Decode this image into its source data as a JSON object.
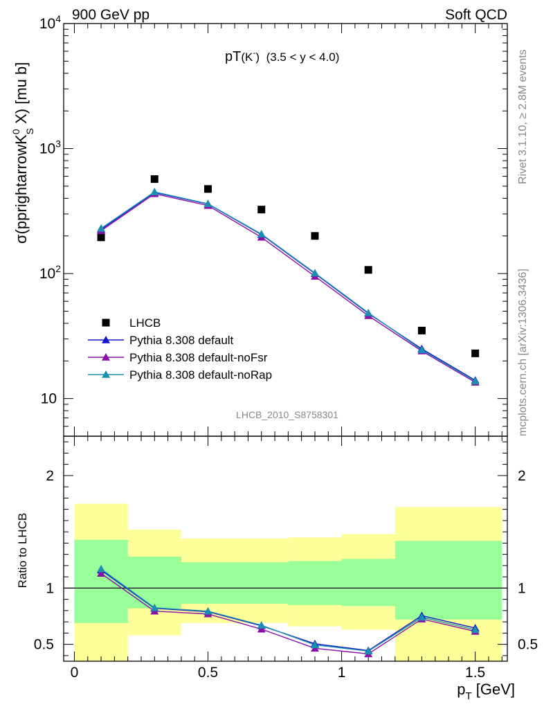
{
  "header": {
    "left": "900 GeV pp",
    "right": "Soft QCD"
  },
  "side_labels": {
    "rivet": "Rivet 3.1.10, ≥ 2.8M events",
    "mcplots": "mcplots.cern.ch [arXiv:1306.3436]"
  },
  "analysis_id": "LHCB_2010_S8758301",
  "chart_data": [
    {
      "type": "scatter",
      "title_main": "pT",
      "title_particle": "(K",
      "title_particle_sup": "-",
      "title_particle_close": ")",
      "title_range": "(3.5 < y < 4.0)",
      "ylabel_prefix": "σ(pprightarrowK",
      "ylabel_sup": "0",
      "ylabel_sub": "S",
      "ylabel_suffix": " X) [mu b]",
      "yscale": "log",
      "ylim": [
        5,
        10000
      ],
      "xlim": [
        -0.04,
        1.62
      ],
      "y_ticks": [
        {
          "v": 10,
          "base": "10",
          "exp": ""
        },
        {
          "v": 100,
          "base": "10",
          "exp": "2"
        },
        {
          "v": 1000,
          "base": "10",
          "exp": "3"
        },
        {
          "v": 10000,
          "base": "10",
          "exp": "4"
        }
      ],
      "x": [
        0.1,
        0.3,
        0.5,
        0.7,
        0.9,
        1.1,
        1.3,
        1.5
      ],
      "series": [
        {
          "name": "LHCB",
          "marker": "square",
          "color": "#000000",
          "values": [
            195,
            570,
            475,
            325,
            200,
            107,
            35,
            23
          ]
        },
        {
          "name": "Pythia 8.308 default",
          "marker": "triangle",
          "color": "#1515c8",
          "values": [
            225,
            445,
            360,
            205,
            100,
            48,
            25,
            14
          ]
        },
        {
          "name": "Pythia 8.308 default-noFsr",
          "marker": "triangle",
          "color": "#8a10a8",
          "values": [
            220,
            435,
            350,
            195,
            95,
            46,
            24,
            13.5
          ]
        },
        {
          "name": "Pythia 8.308 default-noRap",
          "marker": "triangle",
          "color": "#1a8fb0",
          "values": [
            230,
            450,
            362,
            207,
            101,
            48.5,
            24.5,
            13.8
          ]
        }
      ],
      "legend_placement": "lower-left"
    },
    {
      "type": "line",
      "ylabel": "Ratio to LHCB",
      "xlabel_base": "p",
      "xlabel_sub": "T",
      "xlabel_suffix": " [GeV]",
      "ylim": [
        0.35,
        2.35
      ],
      "xlim": [
        -0.04,
        1.62
      ],
      "y_ticks": [
        {
          "v": 0.5,
          "label": "0.5"
        },
        {
          "v": 1,
          "label": "1"
        },
        {
          "v": 2,
          "label": "2"
        }
      ],
      "x_ticks": [
        {
          "v": 0,
          "label": "0"
        },
        {
          "v": 0.5,
          "label": "0.5"
        },
        {
          "v": 1,
          "label": "1"
        },
        {
          "v": 1.5,
          "label": "1.5"
        }
      ],
      "bands": [
        {
          "x0": 0.0,
          "x1": 0.2,
          "yellow": [
            0.35,
            1.75
          ],
          "green": [
            0.69,
            1.43
          ]
        },
        {
          "x0": 0.2,
          "x1": 0.4,
          "yellow": [
            0.58,
            1.52
          ],
          "green": [
            0.82,
            1.28
          ]
        },
        {
          "x0": 0.4,
          "x1": 0.8,
          "yellow": [
            0.69,
            1.44
          ],
          "green": [
            0.86,
            1.23
          ]
        },
        {
          "x0": 0.8,
          "x1": 1.0,
          "yellow": [
            0.66,
            1.45
          ],
          "green": [
            0.85,
            1.24
          ]
        },
        {
          "x0": 1.0,
          "x1": 1.2,
          "yellow": [
            0.63,
            1.48
          ],
          "green": [
            0.84,
            1.26
          ]
        },
        {
          "x0": 1.2,
          "x1": 1.6,
          "yellow": [
            0.35,
            1.72
          ],
          "green": [
            0.72,
            1.42
          ]
        }
      ],
      "x": [
        0.1,
        0.3,
        0.5,
        0.7,
        0.9,
        1.1,
        1.3,
        1.5
      ],
      "series": [
        {
          "name": "Pythia 8.308 default",
          "color": "#1515c8",
          "values": [
            1.16,
            0.82,
            0.79,
            0.665,
            0.505,
            0.445,
            0.755,
            0.645
          ]
        },
        {
          "name": "Pythia 8.308 default-noFsr",
          "color": "#8a10a8",
          "values": [
            1.13,
            0.795,
            0.77,
            0.635,
            0.465,
            0.415,
            0.725,
            0.615
          ]
        },
        {
          "name": "Pythia 8.308 default-noRap",
          "color": "#1a8fb0",
          "values": [
            1.17,
            0.825,
            0.795,
            0.67,
            0.495,
            0.44,
            0.74,
            0.63
          ]
        }
      ]
    }
  ],
  "colors": {
    "band_yellow": "#ffff99",
    "band_green": "#99ff99"
  }
}
